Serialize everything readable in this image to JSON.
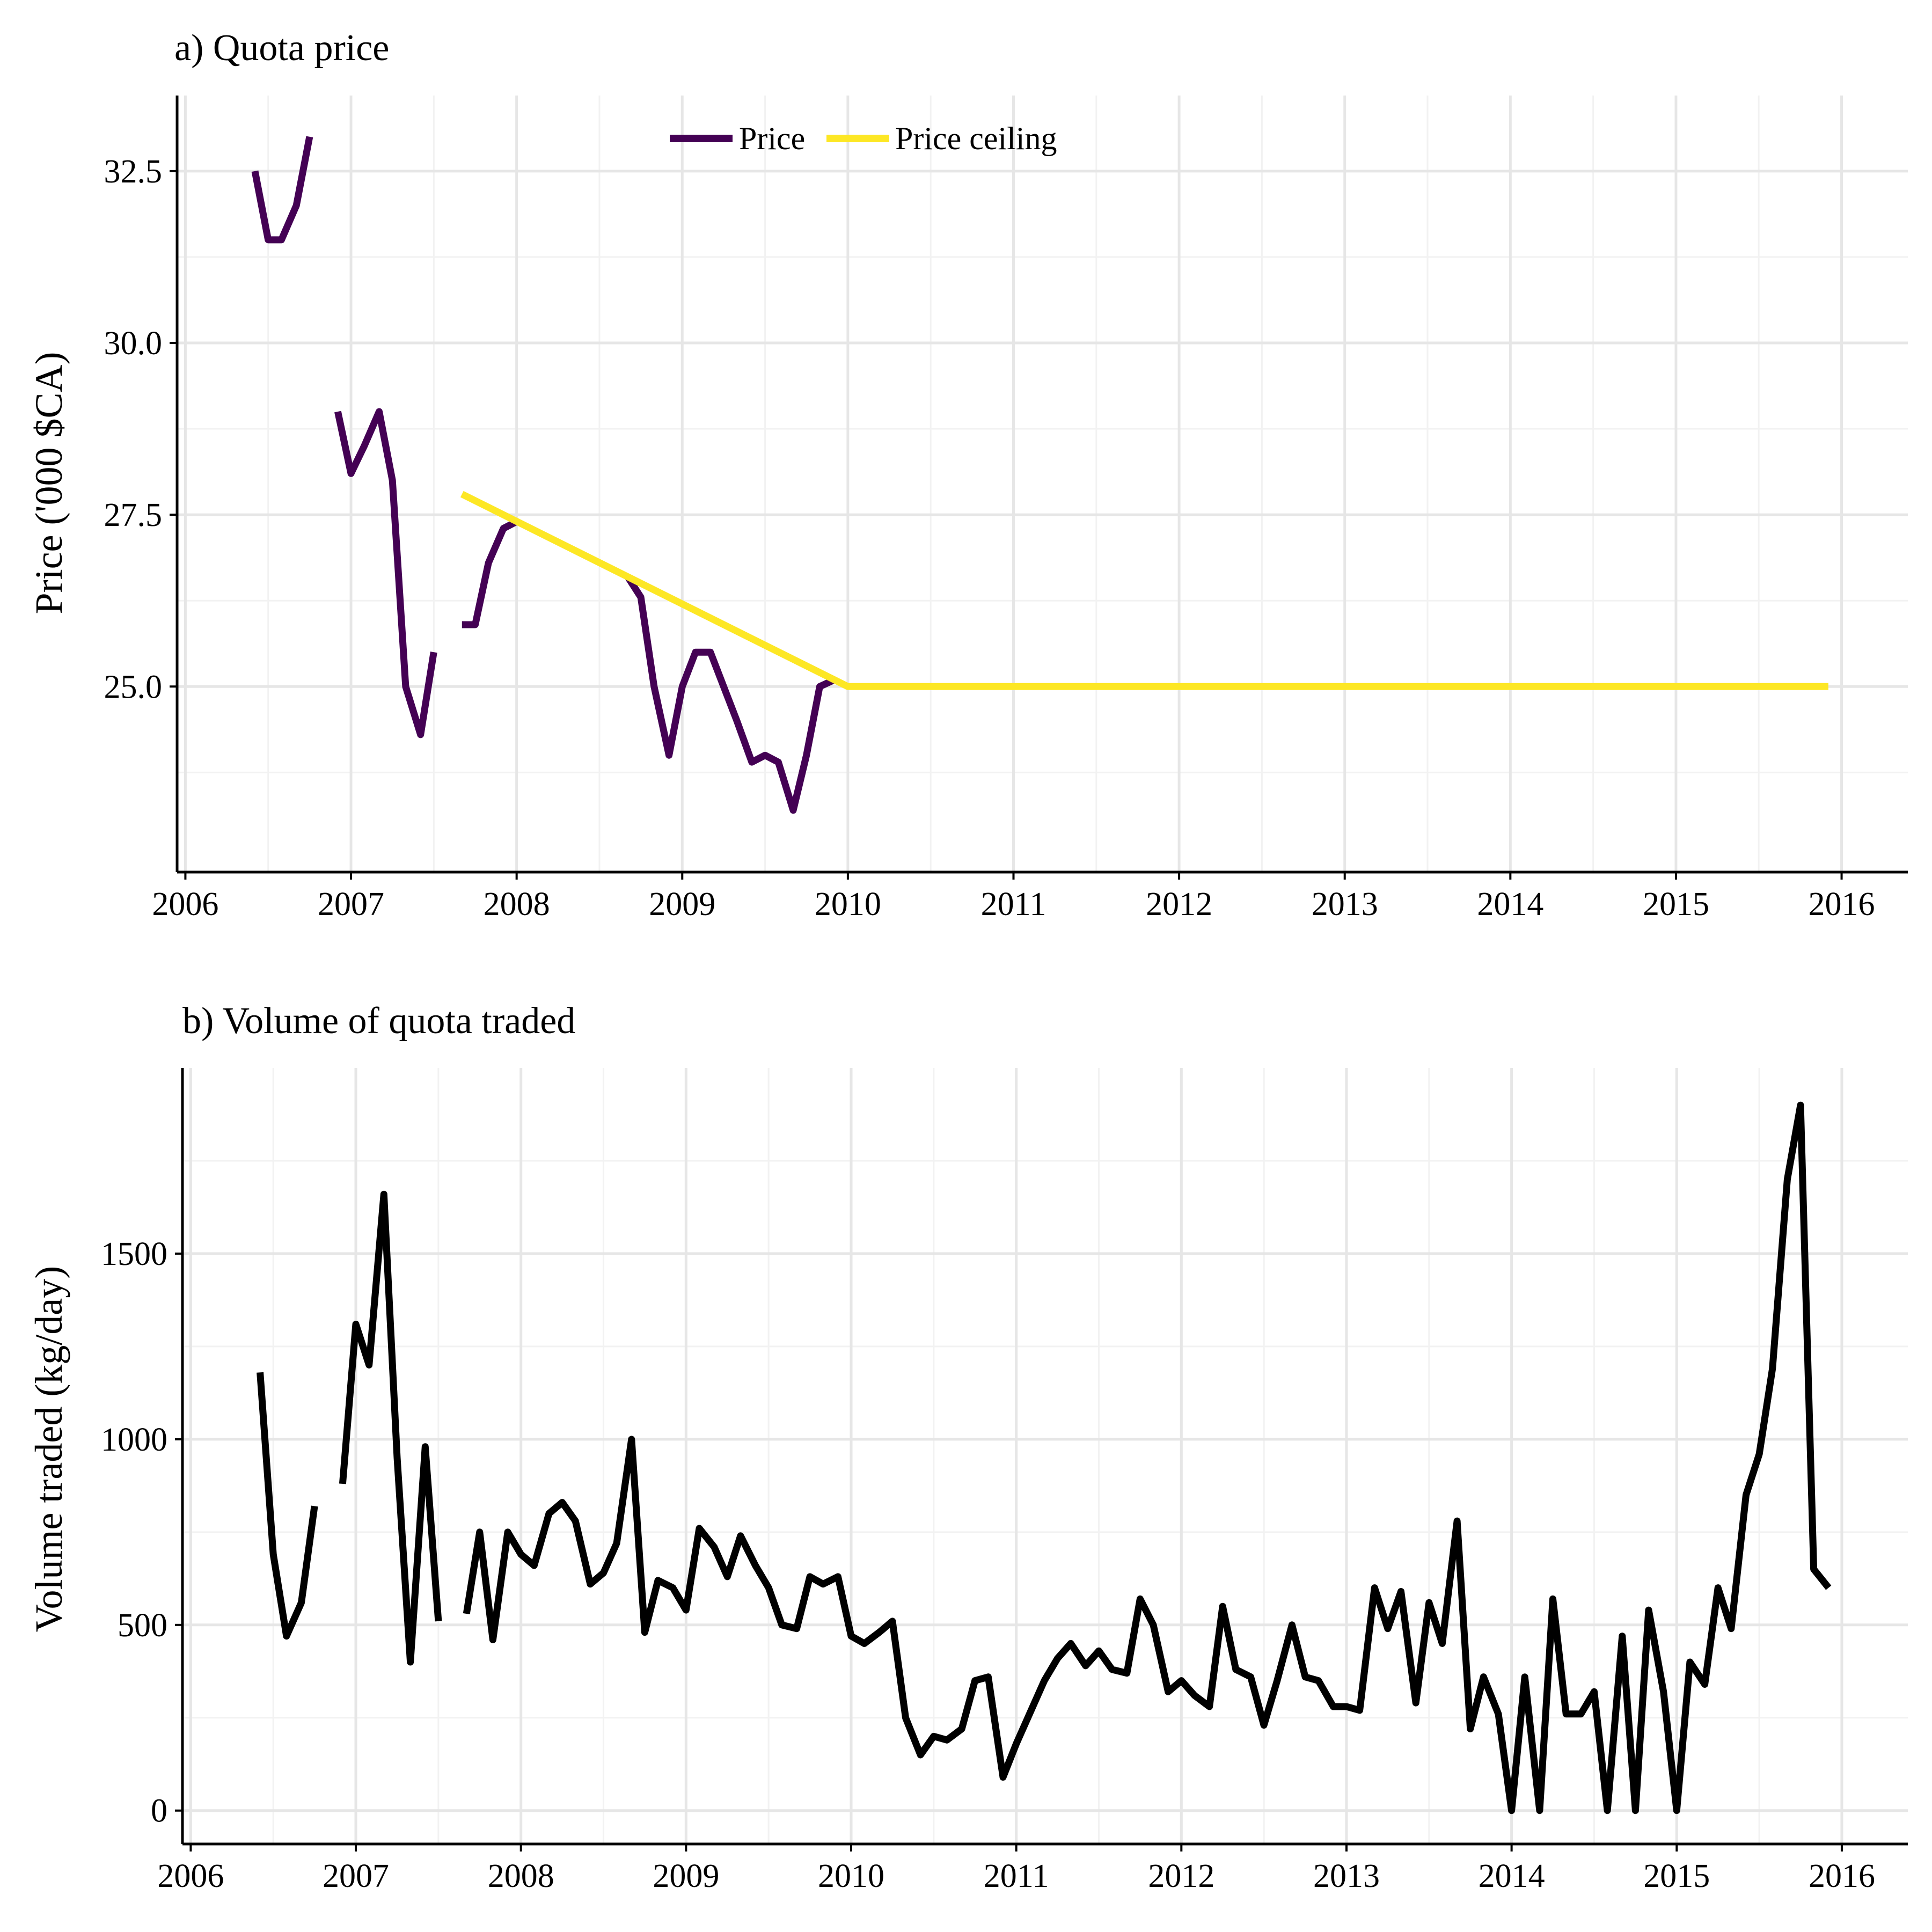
{
  "chart_data": [
    {
      "type": "line",
      "title": "a) Quota price",
      "xlabel": "",
      "ylabel": "Price ('000 $CA)",
      "xlim": [
        2005.95,
        2016.4
      ],
      "ylim": [
        22.3,
        33.6
      ],
      "x_ticks": [
        2006,
        2007,
        2008,
        2009,
        2010,
        2011,
        2012,
        2013,
        2014,
        2015,
        2016
      ],
      "y_ticks": [
        25.0,
        27.5,
        30.0,
        32.5
      ],
      "y_tick_labels": [
        "25.0",
        "27.5",
        "30.0",
        "32.5"
      ],
      "grid": true,
      "legend_position": "top-center",
      "series": [
        {
          "name": "Price",
          "color": "#440154",
          "segments": [
            [
              [
                2006.42,
                32.5
              ],
              [
                2006.5,
                31.5
              ],
              [
                2006.58,
                31.5
              ],
              [
                2006.67,
                32.0
              ],
              [
                2006.75,
                33.0
              ]
            ],
            [
              [
                2006.92,
                29.0
              ],
              [
                2007.0,
                28.1
              ],
              [
                2007.08,
                28.5
              ],
              [
                2007.17,
                29.0
              ],
              [
                2007.25,
                28.0
              ],
              [
                2007.33,
                25.0
              ],
              [
                2007.42,
                24.3
              ],
              [
                2007.5,
                25.5
              ]
            ],
            [
              [
                2007.67,
                25.9
              ],
              [
                2007.75,
                25.9
              ],
              [
                2007.83,
                26.8
              ],
              [
                2007.92,
                27.3
              ],
              [
                2008.0,
                27.4
              ]
            ],
            [
              [
                2008.67,
                26.6
              ],
              [
                2008.75,
                26.3
              ],
              [
                2008.83,
                25.0
              ],
              [
                2008.92,
                24.0
              ],
              [
                2009.0,
                25.0
              ],
              [
                2009.08,
                25.5
              ],
              [
                2009.17,
                25.5
              ],
              [
                2009.25,
                25.0
              ],
              [
                2009.33,
                24.5
              ],
              [
                2009.42,
                23.9
              ],
              [
                2009.5,
                24.0
              ],
              [
                2009.58,
                23.9
              ],
              [
                2009.67,
                23.2
              ],
              [
                2009.75,
                24.0
              ],
              [
                2009.83,
                25.0
              ],
              [
                2009.92,
                25.1
              ]
            ]
          ]
        },
        {
          "name": "Price ceiling",
          "color": "#fde725",
          "segments": [
            [
              [
                2007.67,
                27.8
              ],
              [
                2010.0,
                25.0
              ],
              [
                2015.92,
                25.0
              ]
            ]
          ]
        }
      ]
    },
    {
      "type": "line",
      "title": "b) Volume of quota traded",
      "xlabel": "",
      "ylabel": "Volume traded (kg/day)",
      "xlim": [
        2005.95,
        2016.4
      ],
      "ylim": [
        -90,
        2000
      ],
      "x_ticks": [
        2006,
        2007,
        2008,
        2009,
        2010,
        2011,
        2012,
        2013,
        2014,
        2015,
        2016
      ],
      "y_ticks": [
        0,
        500,
        1000,
        1500
      ],
      "y_tick_labels": [
        "0",
        "500",
        "1000",
        "1500"
      ],
      "grid": true,
      "series": [
        {
          "name": "",
          "color": "#000000",
          "segments": [
            [
              [
                2006.42,
                1180
              ],
              [
                2006.5,
                690
              ],
              [
                2006.58,
                470
              ],
              [
                2006.67,
                560
              ],
              [
                2006.75,
                820
              ]
            ],
            [
              [
                2006.92,
                880
              ],
              [
                2007.0,
                1310
              ],
              [
                2007.08,
                1200
              ],
              [
                2007.17,
                1660
              ],
              [
                2007.25,
                950
              ],
              [
                2007.33,
                400
              ],
              [
                2007.42,
                980
              ],
              [
                2007.5,
                510
              ]
            ],
            [
              [
                2007.67,
                530
              ],
              [
                2007.75,
                750
              ],
              [
                2007.83,
                460
              ],
              [
                2007.92,
                750
              ],
              [
                2008.0,
                690
              ],
              [
                2008.08,
                660
              ],
              [
                2008.17,
                800
              ],
              [
                2008.25,
                830
              ],
              [
                2008.33,
                780
              ],
              [
                2008.42,
                610
              ],
              [
                2008.5,
                640
              ],
              [
                2008.58,
                720
              ],
              [
                2008.67,
                1000
              ],
              [
                2008.75,
                480
              ],
              [
                2008.83,
                620
              ],
              [
                2008.92,
                600
              ],
              [
                2009.0,
                540
              ],
              [
                2009.08,
                760
              ],
              [
                2009.17,
                710
              ],
              [
                2009.25,
                630
              ],
              [
                2009.33,
                740
              ],
              [
                2009.42,
                660
              ],
              [
                2009.5,
                600
              ],
              [
                2009.58,
                500
              ],
              [
                2009.67,
                490
              ],
              [
                2009.75,
                630
              ],
              [
                2009.83,
                610
              ],
              [
                2009.92,
                630
              ],
              [
                2010.0,
                470
              ],
              [
                2010.08,
                450
              ],
              [
                2010.17,
                480
              ],
              [
                2010.25,
                510
              ],
              [
                2010.33,
                250
              ],
              [
                2010.42,
                150
              ],
              [
                2010.5,
                200
              ],
              [
                2010.58,
                190
              ],
              [
                2010.67,
                220
              ],
              [
                2010.75,
                350
              ],
              [
                2010.83,
                360
              ],
              [
                2010.92,
                90
              ],
              [
                2011.0,
                180
              ],
              [
                2011.08,
                260
              ],
              [
                2011.17,
                350
              ],
              [
                2011.25,
                410
              ],
              [
                2011.33,
                450
              ],
              [
                2011.42,
                390
              ],
              [
                2011.5,
                430
              ],
              [
                2011.58,
                380
              ],
              [
                2011.67,
                370
              ],
              [
                2011.75,
                570
              ],
              [
                2011.83,
                500
              ],
              [
                2011.92,
                320
              ],
              [
                2012.0,
                350
              ],
              [
                2012.08,
                310
              ],
              [
                2012.17,
                280
              ],
              [
                2012.25,
                550
              ],
              [
                2012.33,
                380
              ],
              [
                2012.42,
                360
              ],
              [
                2012.5,
                230
              ],
              [
                2012.58,
                350
              ],
              [
                2012.67,
                500
              ],
              [
                2012.75,
                360
              ],
              [
                2012.83,
                350
              ],
              [
                2012.92,
                280
              ],
              [
                2013.0,
                280
              ],
              [
                2013.08,
                270
              ],
              [
                2013.17,
                600
              ],
              [
                2013.25,
                490
              ],
              [
                2013.33,
                590
              ],
              [
                2013.42,
                290
              ],
              [
                2013.5,
                560
              ],
              [
                2013.58,
                450
              ],
              [
                2013.67,
                780
              ],
              [
                2013.75,
                220
              ],
              [
                2013.83,
                360
              ],
              [
                2013.92,
                260
              ],
              [
                2014.0,
                0
              ],
              [
                2014.08,
                360
              ],
              [
                2014.17,
                0
              ],
              [
                2014.25,
                570
              ],
              [
                2014.33,
                260
              ],
              [
                2014.42,
                260
              ],
              [
                2014.5,
                320
              ],
              [
                2014.58,
                0
              ],
              [
                2014.67,
                470
              ],
              [
                2014.75,
                0
              ],
              [
                2014.83,
                540
              ],
              [
                2014.92,
                320
              ],
              [
                2015.0,
                0
              ],
              [
                2015.08,
                400
              ],
              [
                2015.17,
                340
              ],
              [
                2015.25,
                600
              ],
              [
                2015.33,
                490
              ],
              [
                2015.42,
                850
              ],
              [
                2015.5,
                960
              ],
              [
                2015.58,
                1190
              ],
              [
                2015.67,
                1700
              ],
              [
                2015.75,
                1900
              ],
              [
                2015.83,
                650
              ],
              [
                2015.92,
                600
              ]
            ]
          ]
        }
      ]
    }
  ]
}
